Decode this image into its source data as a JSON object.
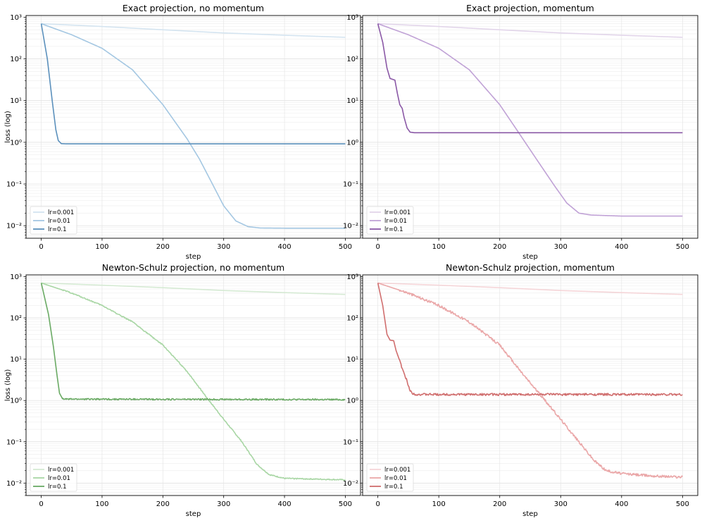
{
  "chart_data": [
    {
      "type": "line",
      "title": "Exact projection, no momentum",
      "xlabel": "step",
      "ylabel": "loss (log)",
      "xlim": [
        -25,
        525
      ],
      "ylim": [
        0.005,
        1100
      ],
      "yscale": "log",
      "xticks": [
        0,
        100,
        200,
        300,
        400,
        500
      ],
      "yticks": [
        0.01,
        0.1,
        1,
        10,
        100,
        1000
      ],
      "ytick_labels": [
        "10⁻²",
        "10⁻¹",
        "10⁰",
        "10¹",
        "10²",
        "10³"
      ],
      "grid": true,
      "legend_position": "bottom-left",
      "series": [
        {
          "name": "lr=0.001",
          "color": "#d4e4f0",
          "noise": 0,
          "points": [
            [
              0,
              700
            ],
            [
              100,
              600
            ],
            [
              200,
              500
            ],
            [
              300,
              420
            ],
            [
              400,
              370
            ],
            [
              500,
              330
            ]
          ]
        },
        {
          "name": "lr=0.01",
          "color": "#a4c7e2",
          "noise": 0,
          "points": [
            [
              0,
              700
            ],
            [
              50,
              380
            ],
            [
              100,
              180
            ],
            [
              150,
              55
            ],
            [
              200,
              8
            ],
            [
              240,
              1.2
            ],
            [
              260,
              0.4
            ],
            [
              280,
              0.11
            ],
            [
              300,
              0.03
            ],
            [
              320,
              0.013
            ],
            [
              340,
              0.0095
            ],
            [
              360,
              0.0088
            ],
            [
              400,
              0.0087
            ],
            [
              500,
              0.0087
            ]
          ]
        },
        {
          "name": "lr=0.1",
          "color": "#5b90bc",
          "noise": 0,
          "points": [
            [
              0,
              700
            ],
            [
              10,
              100
            ],
            [
              18,
              10
            ],
            [
              24,
              2
            ],
            [
              28,
              1.1
            ],
            [
              33,
              0.93
            ],
            [
              40,
              0.92
            ],
            [
              500,
              0.92
            ]
          ]
        }
      ]
    },
    {
      "type": "line",
      "title": "Exact projection, momentum",
      "xlabel": "step",
      "ylabel": "",
      "xlim": [
        -25,
        525
      ],
      "ylim": [
        0.005,
        1100
      ],
      "yscale": "log",
      "xticks": [
        0,
        100,
        200,
        300,
        400,
        500
      ],
      "yticks": [
        0.01,
        0.1,
        1,
        10,
        100,
        1000
      ],
      "ytick_labels": [
        "10⁻²",
        "10⁻¹",
        "10⁰",
        "10¹",
        "10²",
        "10³"
      ],
      "grid": true,
      "legend_position": "bottom-left",
      "series": [
        {
          "name": "lr=0.001",
          "color": "#e2d5ea",
          "noise": 0,
          "points": [
            [
              0,
              700
            ],
            [
              100,
              600
            ],
            [
              200,
              500
            ],
            [
              300,
              420
            ],
            [
              400,
              370
            ],
            [
              500,
              330
            ]
          ]
        },
        {
          "name": "lr=0.01",
          "color": "#c0a2d6",
          "noise": 0,
          "points": [
            [
              0,
              700
            ],
            [
              50,
              380
            ],
            [
              100,
              180
            ],
            [
              150,
              55
            ],
            [
              200,
              8
            ],
            [
              230,
              1.8
            ],
            [
              260,
              0.4
            ],
            [
              290,
              0.09
            ],
            [
              310,
              0.035
            ],
            [
              330,
              0.02
            ],
            [
              350,
              0.018
            ],
            [
              400,
              0.017
            ],
            [
              500,
              0.017
            ]
          ]
        },
        {
          "name": "lr=0.1",
          "color": "#8a58a6",
          "noise": 0,
          "points": [
            [
              0,
              700
            ],
            [
              8,
              250
            ],
            [
              15,
              60
            ],
            [
              20,
              34
            ],
            [
              28,
              31
            ],
            [
              32,
              15
            ],
            [
              36,
              8
            ],
            [
              40,
              6.5
            ],
            [
              43,
              4
            ],
            [
              48,
              2.2
            ],
            [
              53,
              1.75
            ],
            [
              60,
              1.7
            ],
            [
              500,
              1.7
            ]
          ]
        }
      ]
    },
    {
      "type": "line",
      "title": "Newton-Schulz projection, no momentum",
      "xlabel": "step",
      "ylabel": "loss (log)",
      "xlim": [
        -25,
        525
      ],
      "ylim": [
        0.005,
        1100
      ],
      "yscale": "log",
      "xticks": [
        0,
        100,
        200,
        300,
        400,
        500
      ],
      "yticks": [
        0.01,
        0.1,
        1,
        10,
        100,
        1000
      ],
      "ytick_labels": [
        "10⁻²",
        "10⁻¹",
        "10⁰",
        "10¹",
        "10²",
        "10³"
      ],
      "grid": true,
      "legend_position": "bottom-left",
      "series": [
        {
          "name": "lr=0.001",
          "color": "#d5ead3",
          "noise": 0,
          "points": [
            [
              0,
              700
            ],
            [
              100,
              620
            ],
            [
              200,
              540
            ],
            [
              300,
              460
            ],
            [
              400,
              410
            ],
            [
              500,
              370
            ]
          ]
        },
        {
          "name": "lr=0.01",
          "color": "#a8d6a4",
          "noise": 0.03,
          "points": [
            [
              0,
              700
            ],
            [
              50,
              400
            ],
            [
              100,
              200
            ],
            [
              150,
              80
            ],
            [
              200,
              22
            ],
            [
              240,
              5
            ],
            [
              270,
              1.3
            ],
            [
              300,
              0.35
            ],
            [
              330,
              0.1
            ],
            [
              355,
              0.028
            ],
            [
              375,
              0.016
            ],
            [
              400,
              0.013
            ],
            [
              450,
              0.0125
            ],
            [
              500,
              0.012
            ]
          ]
        },
        {
          "name": "lr=0.1",
          "color": "#6aaa64",
          "noise": 0.04,
          "points": [
            [
              0,
              700
            ],
            [
              12,
              120
            ],
            [
              20,
              20
            ],
            [
              26,
              4
            ],
            [
              30,
              1.5
            ],
            [
              35,
              1.1
            ],
            [
              40,
              1.08
            ],
            [
              500,
              1.05
            ]
          ]
        }
      ]
    },
    {
      "type": "line",
      "title": "Newton-Schulz projection, momentum",
      "xlabel": "step",
      "ylabel": "",
      "xlim": [
        -25,
        525
      ],
      "ylim": [
        0.005,
        1100
      ],
      "yscale": "log",
      "xticks": [
        0,
        100,
        200,
        300,
        400,
        500
      ],
      "yticks": [
        0.01,
        0.1,
        1,
        10,
        100,
        1000
      ],
      "ytick_labels": [
        "10⁻²",
        "10⁻¹",
        "10⁰",
        "10¹",
        "10²",
        "10³"
      ],
      "grid": true,
      "legend_position": "bottom-left",
      "series": [
        {
          "name": "lr=0.001",
          "color": "#f5d5d8",
          "noise": 0,
          "points": [
            [
              0,
              700
            ],
            [
              100,
              620
            ],
            [
              200,
              540
            ],
            [
              300,
              460
            ],
            [
              400,
              410
            ],
            [
              500,
              370
            ]
          ]
        },
        {
          "name": "lr=0.01",
          "color": "#eaa7a8",
          "noise": 0.07,
          "points": [
            [
              0,
              700
            ],
            [
              50,
              400
            ],
            [
              100,
              200
            ],
            [
              150,
              80
            ],
            [
              200,
              22
            ],
            [
              240,
              4
            ],
            [
              270,
              1.2
            ],
            [
              300,
              0.35
            ],
            [
              330,
              0.1
            ],
            [
              355,
              0.035
            ],
            [
              375,
              0.02
            ],
            [
              400,
              0.017
            ],
            [
              450,
              0.015
            ],
            [
              500,
              0.014
            ]
          ]
        },
        {
          "name": "lr=0.1",
          "color": "#d06e6e",
          "noise": 0.06,
          "points": [
            [
              0,
              700
            ],
            [
              8,
              200
            ],
            [
              15,
              40
            ],
            [
              20,
              29
            ],
            [
              26,
              28
            ],
            [
              30,
              16
            ],
            [
              35,
              10
            ],
            [
              40,
              6
            ],
            [
              44,
              4
            ],
            [
              48,
              3
            ],
            [
              52,
              1.8
            ],
            [
              58,
              1.45
            ],
            [
              65,
              1.4
            ],
            [
              500,
              1.4
            ]
          ]
        }
      ]
    }
  ]
}
